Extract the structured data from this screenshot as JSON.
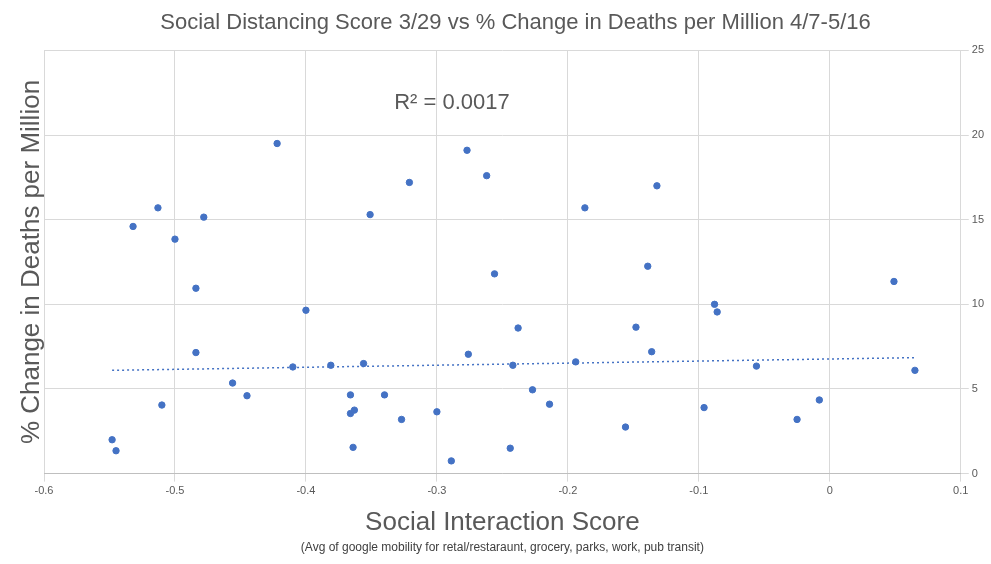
{
  "chart_data": {
    "type": "scatter",
    "title": "Social Distancing Score 3/29 vs % Change in Deaths per Million 4/7-5/16",
    "x_label": "Social Interaction Score",
    "x_sublabel": "(Avg of google mobility for retal/restaraunt, grocery, parks, work, pub transit)",
    "y_label": "% Change in Deaths per Million",
    "annotation": "R² = 0.0017",
    "x": [
      -0.548,
      -0.545,
      -0.532,
      -0.513,
      -0.51,
      -0.5,
      -0.484,
      -0.484,
      -0.478,
      -0.456,
      -0.445,
      -0.422,
      -0.41,
      -0.4,
      -0.381,
      -0.351,
      -0.356,
      -0.366,
      -0.366,
      -0.363,
      -0.364,
      -0.34,
      -0.327,
      -0.321,
      -0.3,
      -0.289,
      -0.277,
      -0.276,
      -0.262,
      -0.256,
      -0.244,
      -0.242,
      -0.238,
      -0.227,
      -0.214,
      -0.194,
      -0.187,
      -0.156,
      -0.148,
      -0.139,
      -0.136,
      -0.132,
      -0.096,
      -0.088,
      -0.086,
      -0.056,
      -0.025,
      -0.008,
      0.049,
      0.065
    ],
    "values": [
      2.0,
      1.35,
      14.6,
      15.7,
      4.05,
      13.85,
      10.95,
      7.15,
      15.15,
      5.35,
      4.6,
      19.5,
      6.3,
      9.65,
      6.4,
      15.3,
      6.5,
      4.65,
      3.55,
      3.75,
      1.55,
      4.65,
      3.2,
      17.2,
      3.65,
      0.75,
      19.1,
      7.05,
      17.6,
      11.8,
      1.5,
      6.4,
      8.6,
      4.95,
      4.1,
      6.6,
      15.7,
      2.75,
      8.65,
      12.25,
      7.2,
      17.0,
      3.9,
      10.0,
      9.55,
      6.35,
      3.2,
      4.35,
      11.35,
      6.1
    ],
    "color": "#4472c4",
    "marker": "circle",
    "trendline": {
      "x": [
        -0.548,
        0.065
      ],
      "y": [
        6.1,
        6.85
      ],
      "line_style": "dotted"
    },
    "xlim": [
      -0.6,
      0.1
    ],
    "xticks": [
      -0.6,
      -0.5,
      -0.4,
      -0.3,
      -0.2,
      -0.1,
      0,
      0.1
    ],
    "ylim": [
      0,
      25
    ],
    "yticks": [
      0,
      5,
      10,
      15,
      20,
      25
    ],
    "grid": true
  }
}
